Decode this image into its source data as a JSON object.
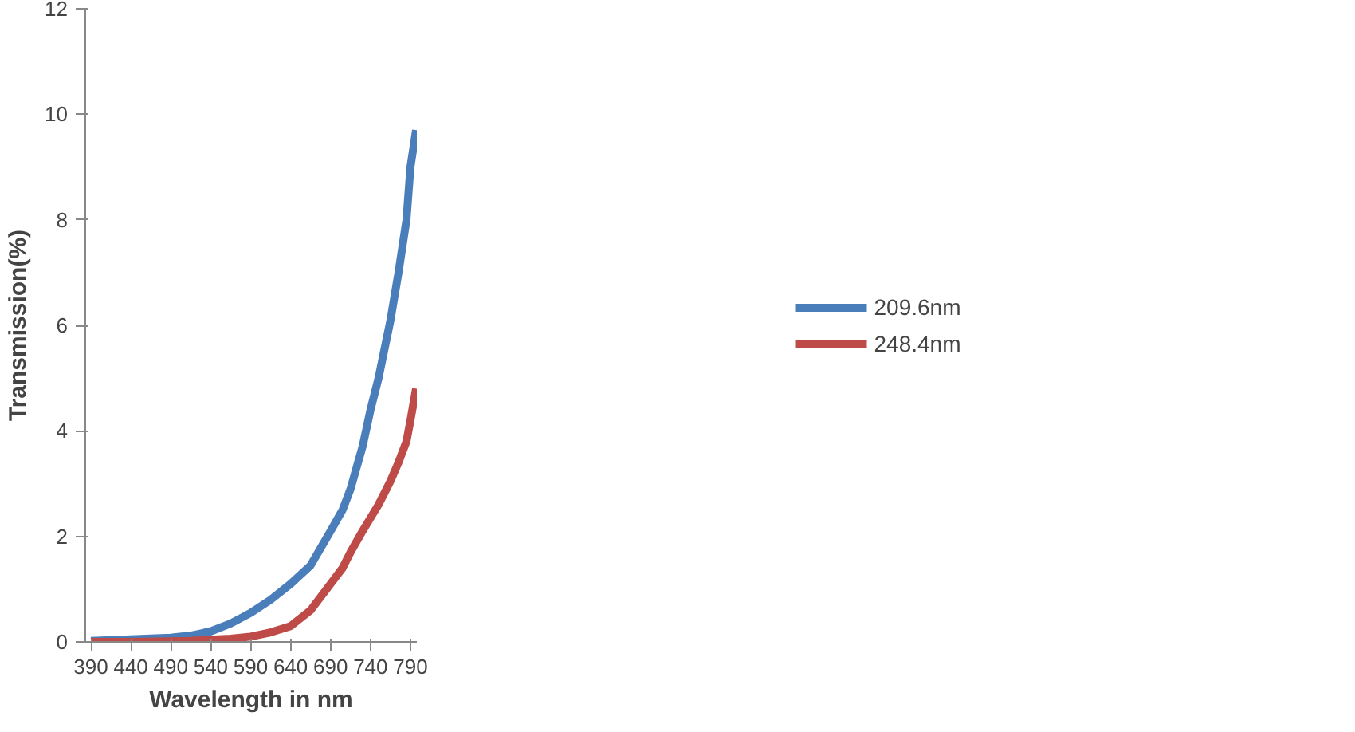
{
  "chart_data": {
    "type": "line",
    "xlabel": "Wavelength in nm",
    "ylabel": "Transmission(%)",
    "xlim": [
      383,
      798
    ],
    "xticks": [
      390,
      440,
      490,
      540,
      590,
      640,
      690,
      740,
      790
    ],
    "ylim": [
      0,
      12
    ],
    "yticks": [
      0,
      2,
      4,
      6,
      8,
      10,
      12
    ],
    "grid": false,
    "legend": "right",
    "marker": "none",
    "line_style": "solid",
    "x": [
      390,
      440,
      490,
      515,
      540,
      565,
      590,
      615,
      640,
      665,
      690,
      705,
      715,
      730,
      740,
      750,
      765,
      775,
      785,
      790,
      797
    ],
    "series": [
      {
        "name": "209.6nm",
        "color": "#4a7ebb",
        "values": [
          0.02,
          0.05,
          0.08,
          0.12,
          0.2,
          0.35,
          0.55,
          0.8,
          1.1,
          1.45,
          2.1,
          2.5,
          2.9,
          3.7,
          4.4,
          5.0,
          6.1,
          7.0,
          8.0,
          9.0,
          9.7
        ]
      },
      {
        "name": "248.4nm",
        "color": "#be4b48",
        "values": [
          0.0,
          0.0,
          0.01,
          0.02,
          0.04,
          0.06,
          0.1,
          0.18,
          0.3,
          0.6,
          1.1,
          1.4,
          1.7,
          2.1,
          2.35,
          2.6,
          3.05,
          3.4,
          3.8,
          4.2,
          4.8
        ]
      }
    ]
  }
}
